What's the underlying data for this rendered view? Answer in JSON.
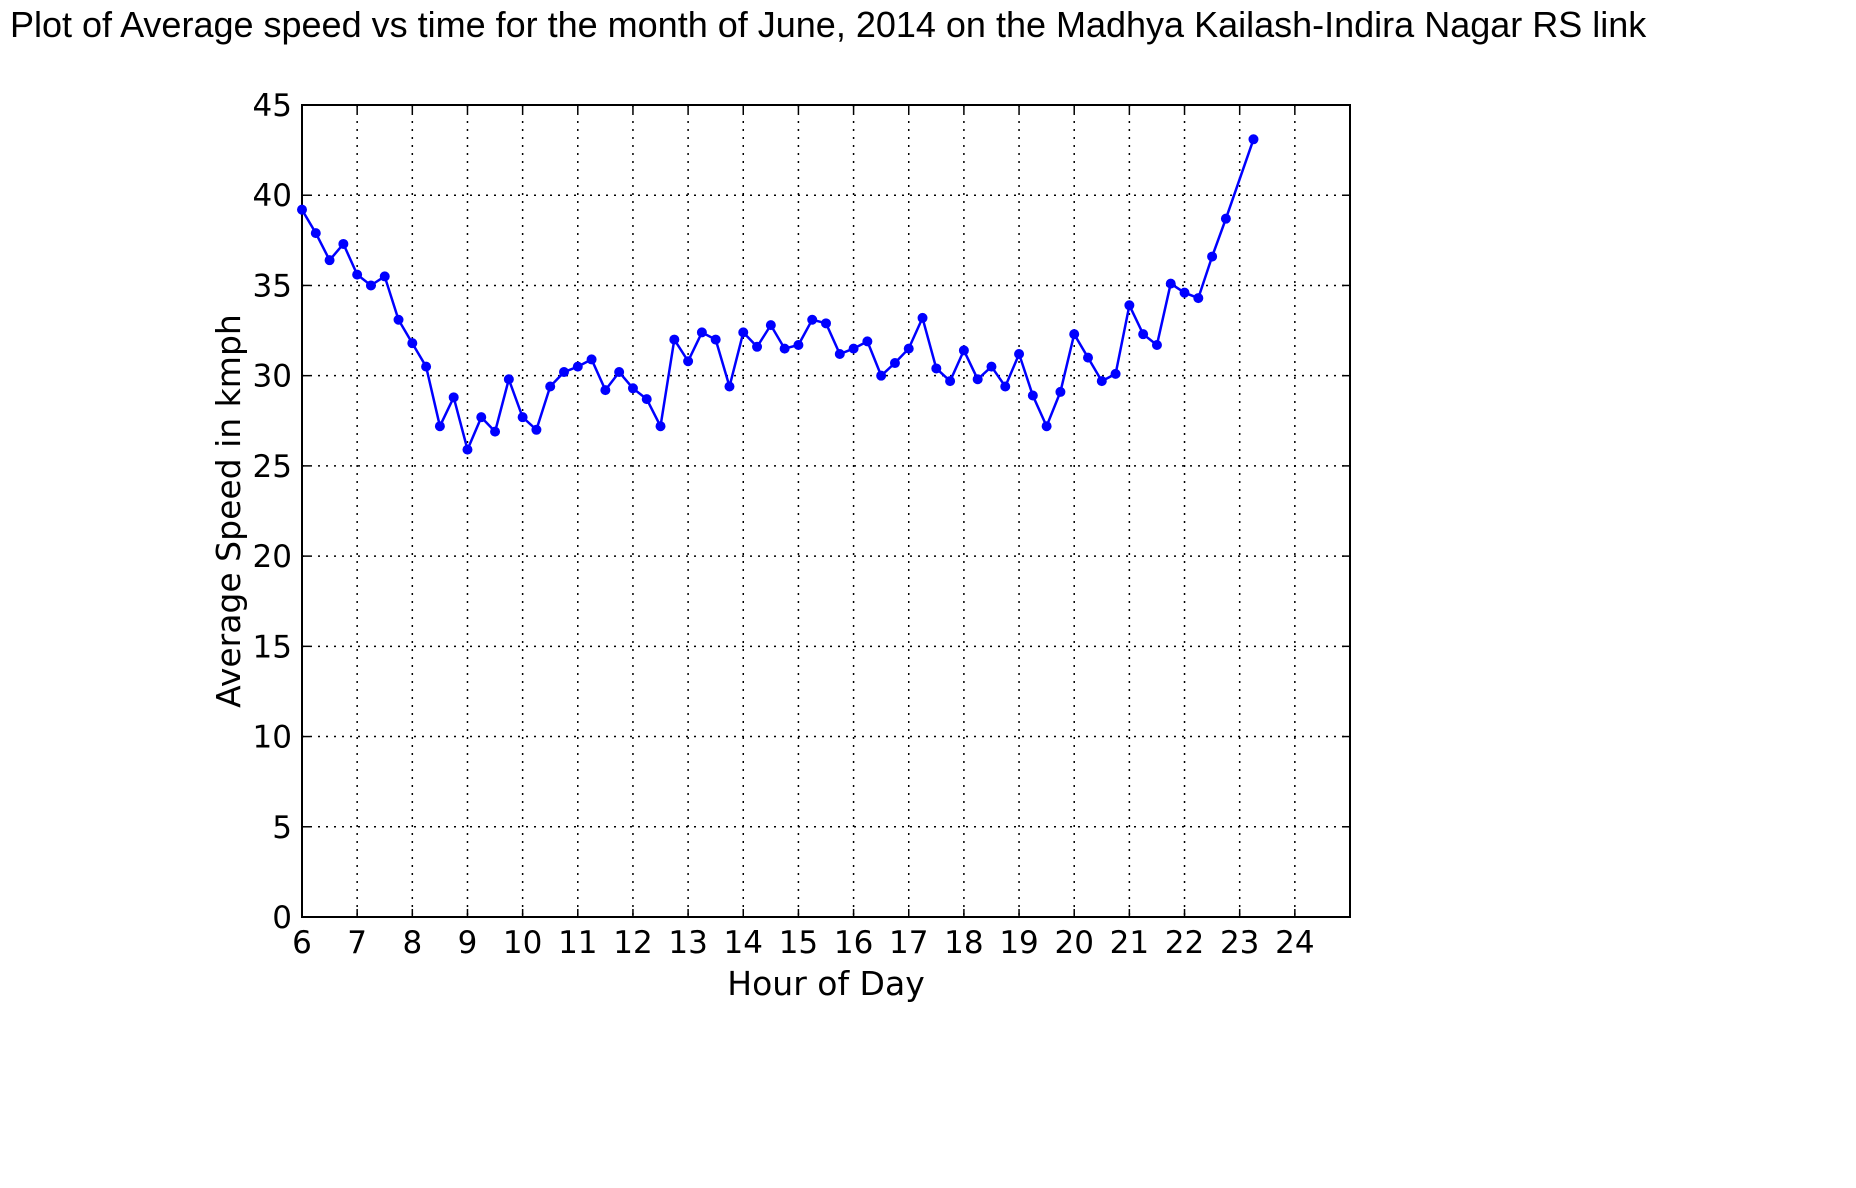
{
  "title": "Plot of Average speed vs time for the month of June, 2014 on the Madhya Kailash-Indira Nagar RS link",
  "chart_data": {
    "type": "line",
    "xlabel": "Hour of Day",
    "ylabel": "Average Speed in kmph",
    "xlim": [
      6,
      25
    ],
    "ylim": [
      0,
      45
    ],
    "xticks": [
      6,
      7,
      8,
      9,
      10,
      11,
      12,
      13,
      14,
      15,
      16,
      17,
      18,
      19,
      20,
      21,
      22,
      23,
      24
    ],
    "yticks": [
      0,
      5,
      10,
      15,
      20,
      25,
      30,
      35,
      40,
      45
    ],
    "grid": true,
    "line_color": "#0000ff",
    "series": [
      {
        "x": [
          6.0,
          6.25,
          6.5,
          6.75,
          7.0,
          7.25,
          7.5,
          7.75,
          8.0,
          8.25,
          8.5,
          8.75,
          9.0,
          9.25,
          9.5,
          9.75,
          10.0,
          10.25,
          10.5,
          10.75,
          11.0,
          11.25,
          11.5,
          11.75,
          12.0,
          12.25,
          12.5,
          12.75,
          13.0,
          13.25,
          13.5,
          13.75,
          14.0,
          14.25,
          14.5,
          14.75,
          15.0,
          15.25,
          15.5,
          15.75,
          16.0,
          16.25,
          16.5,
          16.75,
          17.0,
          17.25,
          17.5,
          17.75,
          18.0,
          18.25,
          18.5,
          18.75,
          19.0,
          19.25,
          19.5,
          19.75,
          20.0,
          20.25,
          20.5,
          20.75,
          21.0,
          21.25,
          21.5,
          21.75,
          22.0,
          22.25,
          22.5,
          22.75,
          23.25
        ],
        "y": [
          39.2,
          37.9,
          36.4,
          37.3,
          35.6,
          35.0,
          35.5,
          33.1,
          31.8,
          30.5,
          27.2,
          28.8,
          25.9,
          27.7,
          26.9,
          29.8,
          27.7,
          27.0,
          29.4,
          30.2,
          30.5,
          30.9,
          29.2,
          30.2,
          29.3,
          28.7,
          27.2,
          32.0,
          30.8,
          32.4,
          32.0,
          29.4,
          32.4,
          31.6,
          32.8,
          31.5,
          31.7,
          33.1,
          32.9,
          31.2,
          31.5,
          31.9,
          30.0,
          30.7,
          31.5,
          33.2,
          30.4,
          29.7,
          31.4,
          29.8,
          30.5,
          29.4,
          31.2,
          28.9,
          27.2,
          29.1,
          32.3,
          31.0,
          29.7,
          30.1,
          33.9,
          32.3,
          31.7,
          35.1,
          34.6,
          34.3,
          36.6,
          38.7,
          43.1
        ]
      }
    ]
  }
}
